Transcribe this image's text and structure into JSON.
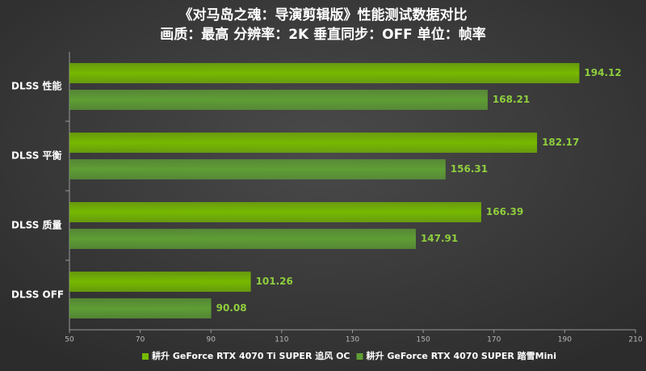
{
  "chart_data": {
    "type": "bar",
    "orientation": "horizontal",
    "title": "《对马岛之魂：导演剪辑版》性能测试数据对比",
    "subtitle": "画质：最高 分辨率：2K 垂直同步：OFF 单位：帧率",
    "categories": [
      "DLSS 性能",
      "DLSS 平衡",
      "DLSS 质量",
      "DLSS OFF"
    ],
    "series": [
      {
        "name": "耕升 GeForce RTX 4070 Ti SUPER 追风 OC",
        "color": "#76b900",
        "values": [
          194.12,
          182.17,
          166.39,
          101.26
        ]
      },
      {
        "name": "耕升 GeForce RTX 4070 SUPER 踏雪Mini",
        "color": "#5e9e34",
        "values": [
          168.21,
          156.31,
          147.91,
          90.08
        ]
      }
    ],
    "xlim": [
      50,
      210
    ],
    "xticks": [
      50,
      70,
      90,
      110,
      130,
      150,
      170,
      190,
      210
    ],
    "legend": "bottom"
  }
}
